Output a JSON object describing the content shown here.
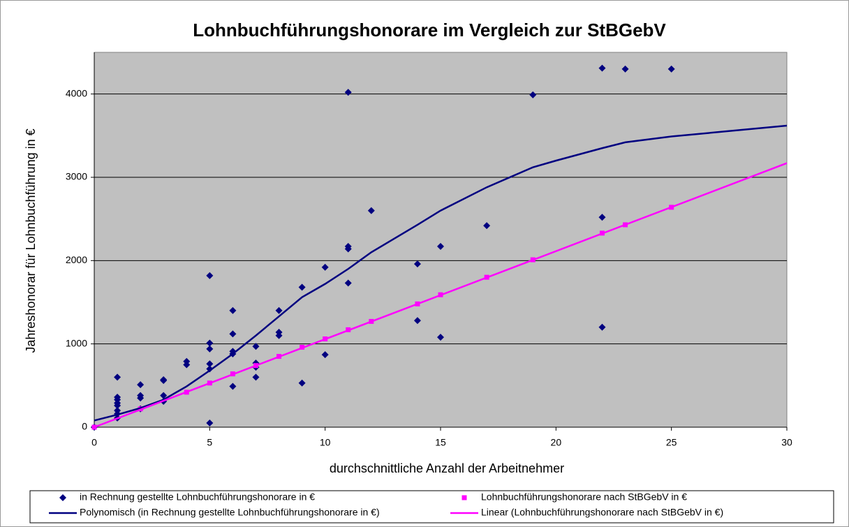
{
  "chart_data": {
    "type": "scatter",
    "title": "Lohnbuchführungshonorare im Vergleich zur StBGebV",
    "x_label": "durchschnittliche Anzahl der Arbeitnehmer",
    "y_label": "Jahreshonorar für Lohnbuchführung in €",
    "xlim": [
      0,
      30
    ],
    "ylim": [
      0,
      4500
    ],
    "xticks": [
      0,
      5,
      10,
      15,
      20,
      25,
      30
    ],
    "yticks": [
      0,
      1000,
      2000,
      3000,
      4000
    ],
    "grid": true,
    "legend": "bottom",
    "series": [
      {
        "name": "in Rechnung gestellte Lohnbuchführungshonorare in €",
        "color": "#000080",
        "marker": "diamond",
        "line": false,
        "x": [
          0,
          1,
          1,
          1,
          1,
          1,
          1,
          1,
          1,
          2,
          2,
          2,
          2,
          3,
          3,
          3,
          3,
          4,
          4,
          5,
          5,
          5,
          5,
          5,
          5,
          6,
          6,
          6,
          6,
          6,
          7,
          7,
          7,
          7,
          8,
          8,
          8,
          9,
          9,
          10,
          10,
          11,
          11,
          11,
          11,
          12,
          14,
          14,
          15,
          15,
          17,
          19,
          22,
          22,
          22,
          23,
          25
        ],
        "values": [
          0,
          600,
          360,
          330,
          290,
          260,
          200,
          160,
          110,
          510,
          380,
          350,
          220,
          570,
          560,
          380,
          310,
          790,
          750,
          1820,
          1010,
          940,
          760,
          700,
          50,
          1400,
          1120,
          910,
          880,
          490,
          970,
          770,
          720,
          600,
          1400,
          1140,
          1100,
          1680,
          530,
          1920,
          870,
          4020,
          2170,
          2140,
          1730,
          2600,
          1960,
          1280,
          2170,
          1080,
          2420,
          3990,
          4310,
          2520,
          1200,
          4300,
          4300
        ]
      },
      {
        "name": "Lohnbuchführungshonorare nach StBGebV in €",
        "color": "#ff00ff",
        "marker": "square",
        "line": false,
        "x": [
          0,
          2,
          4,
          5,
          6,
          7,
          8,
          9,
          10,
          11,
          12,
          14,
          15,
          17,
          19,
          22,
          23,
          25
        ],
        "values": [
          0,
          220,
          420,
          530,
          640,
          740,
          850,
          960,
          1060,
          1170,
          1270,
          1480,
          1590,
          1800,
          2010,
          2330,
          2430,
          2640
        ]
      },
      {
        "name": "Polynomisch (in Rechnung gestellte Lohnbuchführungshonorare in €)",
        "color": "#000080",
        "marker": "none",
        "line": true,
        "x": [
          0,
          1,
          2,
          3,
          4,
          5,
          6,
          7,
          8,
          9,
          10,
          11,
          12,
          14,
          15,
          17,
          19,
          20,
          22,
          23,
          25,
          30
        ],
        "values": [
          80,
          150,
          230,
          330,
          490,
          680,
          880,
          1100,
          1330,
          1560,
          1720,
          1900,
          2100,
          2430,
          2600,
          2880,
          3120,
          3200,
          3350,
          3420,
          3490,
          3620
        ]
      },
      {
        "name": "Linear (Lohnbuchführungshonorare nach StBGebV in €)",
        "color": "#ff00ff",
        "marker": "none",
        "line": true,
        "x": [
          0,
          30
        ],
        "values": [
          0,
          3170
        ]
      }
    ]
  }
}
